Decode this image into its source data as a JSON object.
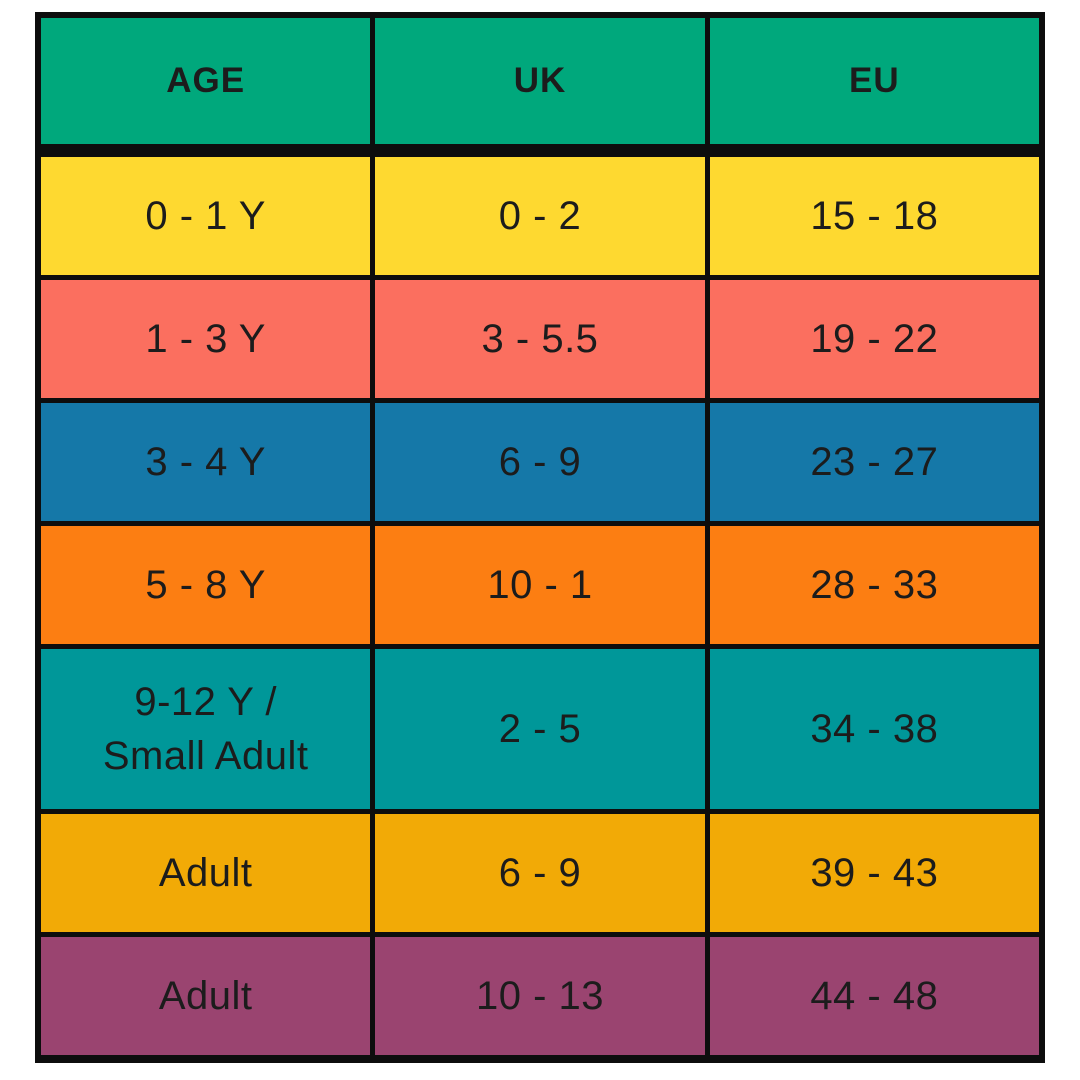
{
  "chart_data": {
    "type": "table",
    "columns": [
      "AGE",
      "UK",
      "EU"
    ],
    "rows": [
      {
        "cells": [
          "0 - 1 Y",
          "0 - 2",
          "15 - 18"
        ],
        "color": "#FED930"
      },
      {
        "cells": [
          "1 - 3 Y",
          "3 - 5.5",
          "19 - 22"
        ],
        "color": "#FB6F5F"
      },
      {
        "cells": [
          "3 - 4 Y",
          "6 - 9",
          "23 - 27"
        ],
        "color": "#1578A8"
      },
      {
        "cells": [
          "5 - 8 Y",
          "10 - 1",
          "28 - 33"
        ],
        "color": "#FC7E12"
      },
      {
        "cells": [
          "9-12 Y /\nSmall Adult",
          "2 - 5",
          "34 - 38"
        ],
        "color": "#009799"
      },
      {
        "cells": [
          "Adult",
          "6 - 9",
          "39 - 43"
        ],
        "color": "#F2AA06"
      },
      {
        "cells": [
          "Adult",
          "10 - 13",
          "44 - 48"
        ],
        "color": "#9A4470"
      }
    ],
    "header_color": "#00A87C",
    "border_color": "#0d0d0d",
    "text_color": "#1c1c1c",
    "layout_hints": {
      "grid": "on",
      "header_divider": "thick-black"
    }
  }
}
